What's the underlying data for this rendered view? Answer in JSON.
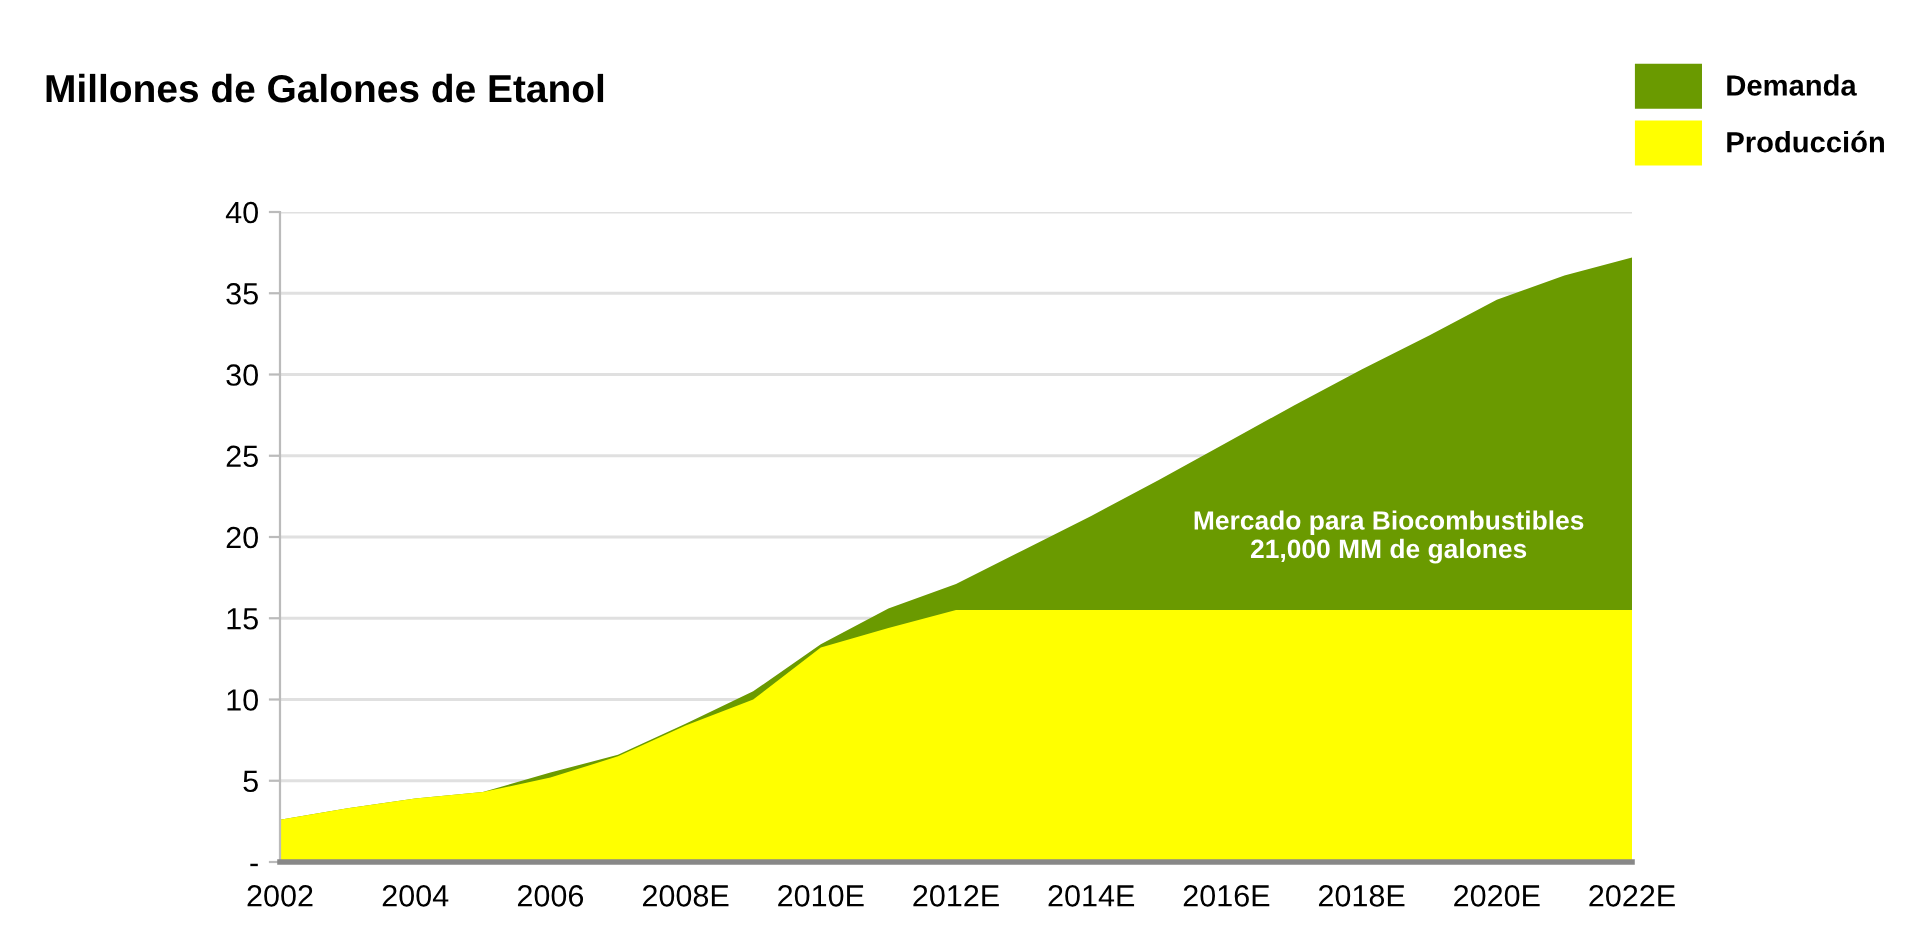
{
  "chart_data": {
    "type": "area",
    "title": "Millones de Galones de Etanol",
    "categories": [
      "2002",
      null,
      "2004",
      null,
      "2006",
      null,
      "2008E",
      null,
      "2010E",
      null,
      "2012E",
      null,
      "2014E",
      null,
      "2016E",
      null,
      "2018E",
      null,
      "2020E",
      null,
      "2022E"
    ],
    "series": [
      {
        "name": "Demanda",
        "color": "#6a9a00",
        "values": [
          2.6,
          3.3,
          3.9,
          4.3,
          5.5,
          6.6,
          8.5,
          10.5,
          13.4,
          15.6,
          17.1,
          19.2,
          21.3,
          23.5,
          25.8,
          28.1,
          30.3,
          32.4,
          34.6,
          36.1,
          37.2
        ]
      },
      {
        "name": "Producción",
        "color": "#ffff00",
        "values": [
          2.6,
          3.3,
          3.9,
          4.3,
          5.2,
          6.5,
          8.4,
          10.0,
          13.2,
          14.4,
          15.5,
          15.5,
          15.5,
          15.5,
          15.5,
          15.5,
          15.5,
          15.5,
          15.5,
          15.5,
          15.5
        ]
      }
    ],
    "ylim": [
      0,
      40
    ],
    "yticks": [
      {
        "value": 0,
        "label": "-"
      },
      5,
      10,
      15,
      20,
      25,
      30,
      35,
      40
    ],
    "grid": "y",
    "legend": "top right",
    "annotations": [
      "Mercado para Biocombustibles\n21,000 MM de galones"
    ]
  }
}
